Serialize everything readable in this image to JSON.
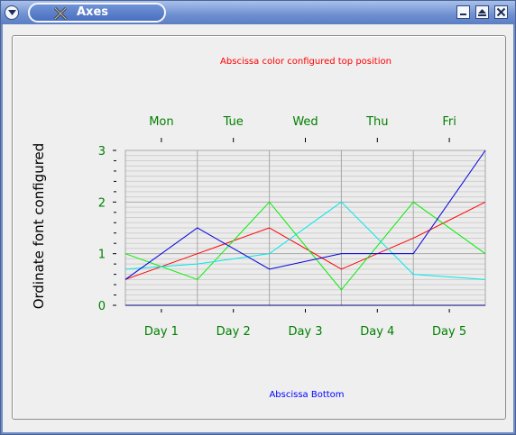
{
  "window": {
    "title": "Axes"
  },
  "icons": {
    "menu": "chevron-down-icon",
    "app": "x-icon",
    "minimize": "minimize-icon",
    "maximize": "maximize-icon",
    "close": "close-icon"
  },
  "colors": {
    "top_title": "#ff0000",
    "bottom_title": "#0000ff",
    "tick_labels": "#008000"
  },
  "chart_data": {
    "type": "line",
    "title": "Abscissa color configured top position",
    "xlabel": "Abscissa Bottom",
    "ylabel": "Ordinate font configured",
    "categories": [
      "Day 1",
      "Day 2",
      "Day 3",
      "Day 4",
      "Day 5"
    ],
    "top_categories": [
      "Mon",
      "Tue",
      "Wed",
      "Thu",
      "Fri"
    ],
    "x": [
      0,
      1,
      2,
      3,
      4,
      5
    ],
    "yticks": [
      "0",
      "1",
      "2",
      "3"
    ],
    "ylim": [
      0,
      3
    ],
    "xlim": [
      0,
      5
    ],
    "grid": true,
    "series": [
      {
        "color": "#ff0000",
        "values": [
          0.5,
          1.0,
          1.5,
          0.7,
          1.3,
          2.0
        ]
      },
      {
        "color": "#00ee00",
        "values": [
          1.0,
          0.5,
          2.0,
          0.3,
          2.0,
          1.0
        ]
      },
      {
        "color": "#00e8e8",
        "values": [
          0.7,
          0.8,
          1.0,
          2.0,
          0.6,
          0.5
        ]
      },
      {
        "color": "#0000dd",
        "values": [
          0.5,
          1.5,
          0.7,
          1.0,
          1.0,
          3.0
        ]
      }
    ]
  }
}
